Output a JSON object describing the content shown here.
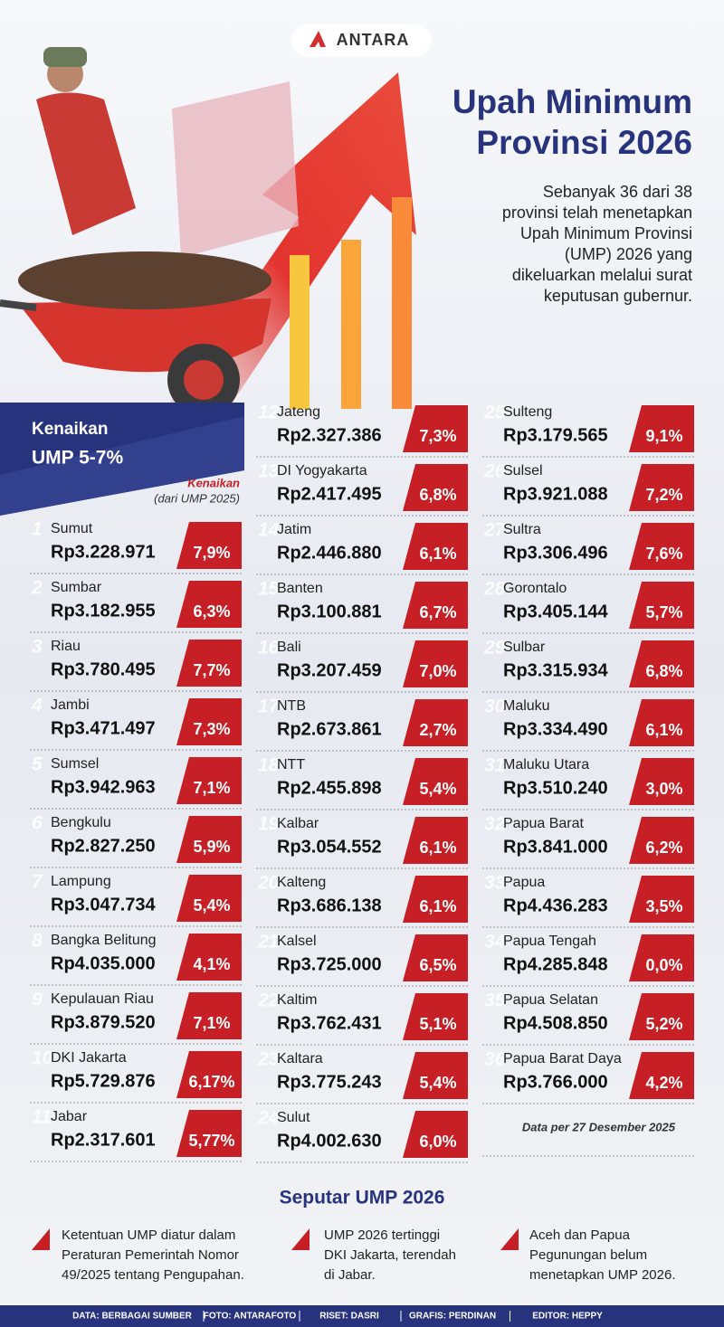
{
  "header": {
    "logo": "ANTARA",
    "title": [
      "Upah Minimum",
      "Provinsi 2026"
    ],
    "description": [
      "Sebanyak 36 dari 38",
      "provinsi telah menetapkan",
      "Upah Minimum Provinsi",
      "(UMP) 2026 yang",
      "dikeluarkan melalui surat",
      "keputusan gubernur."
    ]
  },
  "banner": {
    "label": "Kenaikan",
    "value": "UMP 5-7%"
  },
  "column_header": {
    "title": "Kenaikan",
    "subtitle": "(dari UMP 2025)"
  },
  "provinces": [
    {
      "rank": "1",
      "name": "Sumut",
      "ump": "Rp3.228.971",
      "increase": "7,9%"
    },
    {
      "rank": "2",
      "name": "Sumbar",
      "ump": "Rp3.182.955",
      "increase": "6,3%"
    },
    {
      "rank": "3",
      "name": "Riau",
      "ump": "Rp3.780.495",
      "increase": "7,7%"
    },
    {
      "rank": "4",
      "name": "Jambi",
      "ump": "Rp3.471.497",
      "increase": "7,3%"
    },
    {
      "rank": "5",
      "name": "Sumsel",
      "ump": "Rp3.942.963",
      "increase": "7,1%"
    },
    {
      "rank": "6",
      "name": "Bengkulu",
      "ump": "Rp2.827.250",
      "increase": "5,9%"
    },
    {
      "rank": "7",
      "name": "Lampung",
      "ump": "Rp3.047.734",
      "increase": "5,4%"
    },
    {
      "rank": "8",
      "name": "Bangka Belitung",
      "ump": "Rp4.035.000",
      "increase": "4,1%"
    },
    {
      "rank": "9",
      "name": "Kepulauan Riau",
      "ump": "Rp3.879.520",
      "increase": "7,1%"
    },
    {
      "rank": "10",
      "name": "DKI Jakarta",
      "ump": "Rp5.729.876",
      "increase": "6,17%"
    },
    {
      "rank": "11",
      "name": "Jabar",
      "ump": "Rp2.317.601",
      "increase": "5,77%"
    },
    {
      "rank": "12",
      "name": "Jateng",
      "ump": "Rp2.327.386",
      "increase": "7,3%"
    },
    {
      "rank": "13",
      "name": "DI Yogyakarta",
      "ump": "Rp2.417.495",
      "increase": "6,8%"
    },
    {
      "rank": "14",
      "name": "Jatim",
      "ump": "Rp2.446.880",
      "increase": "6,1%"
    },
    {
      "rank": "15",
      "name": "Banten",
      "ump": "Rp3.100.881",
      "increase": "6,7%"
    },
    {
      "rank": "16",
      "name": "Bali",
      "ump": "Rp3.207.459",
      "increase": "7,0%"
    },
    {
      "rank": "17",
      "name": "NTB",
      "ump": "Rp2.673.861",
      "increase": "2,7%"
    },
    {
      "rank": "18",
      "name": "NTT",
      "ump": "Rp2.455.898",
      "increase": "5,4%"
    },
    {
      "rank": "19",
      "name": "Kalbar",
      "ump": "Rp3.054.552",
      "increase": "6,1%"
    },
    {
      "rank": "20",
      "name": "Kalteng",
      "ump": "Rp3.686.138",
      "increase": "6,1%"
    },
    {
      "rank": "21",
      "name": "Kalsel",
      "ump": "Rp3.725.000",
      "increase": "6,5%"
    },
    {
      "rank": "22",
      "name": "Kaltim",
      "ump": "Rp3.762.431",
      "increase": "5,1%"
    },
    {
      "rank": "23",
      "name": "Kaltara",
      "ump": "Rp3.775.243",
      "increase": "5,4%"
    },
    {
      "rank": "24",
      "name": "Sulut",
      "ump": "Rp4.002.630",
      "increase": "6,0%"
    },
    {
      "rank": "25",
      "name": "Sulteng",
      "ump": "Rp3.179.565",
      "increase": "9,1%"
    },
    {
      "rank": "26",
      "name": "Sulsel",
      "ump": "Rp3.921.088",
      "increase": "7,2%"
    },
    {
      "rank": "27",
      "name": "Sultra",
      "ump": "Rp3.306.496",
      "increase": "7,6%"
    },
    {
      "rank": "28",
      "name": "Gorontalo",
      "ump": "Rp3.405.144",
      "increase": "5,7%"
    },
    {
      "rank": "29",
      "name": "Sulbar",
      "ump": "Rp3.315.934",
      "increase": "6,8%"
    },
    {
      "rank": "30",
      "name": "Maluku",
      "ump": "Rp3.334.490",
      "increase": "6,1%"
    },
    {
      "rank": "31",
      "name": "Maluku Utara",
      "ump": "Rp3.510.240",
      "increase": "3,0%"
    },
    {
      "rank": "32",
      "name": "Papua Barat",
      "ump": "Rp3.841.000",
      "increase": "6,2%"
    },
    {
      "rank": "33",
      "name": "Papua",
      "ump": "Rp4.436.283",
      "increase": "3,5%"
    },
    {
      "rank": "34",
      "name": "Papua Tengah",
      "ump": "Rp4.285.848",
      "increase": "0,0%"
    },
    {
      "rank": "35",
      "name": "Papua Selatan",
      "ump": "Rp4.508.850",
      "increase": "5,2%"
    },
    {
      "rank": "36",
      "name": "Papua Barat Daya",
      "ump": "Rp3.766.000",
      "increase": "4,2%"
    }
  ],
  "note": "Data per 27 Desember 2025",
  "facts": {
    "title": "Seputar UMP 2026",
    "items": [
      [
        "Ketentuan UMP diatur dalam",
        "Peraturan Pemerintah Nomor",
        "49/2025 tentang Pengupahan."
      ],
      [
        "UMP 2026 tertinggi",
        "DKI Jakarta, terendah",
        "di Jabar."
      ],
      [
        "Aceh dan Papua",
        "Pegunungan belum",
        "menetapkan UMP 2026."
      ]
    ]
  },
  "footer": [
    "DATA: BERBAGAI SUMBER",
    "FOTO: ANTARAFOTO",
    "RISET: DASRI",
    "GRAFIS: PERDINAN",
    "EDITOR: HEPPY"
  ]
}
